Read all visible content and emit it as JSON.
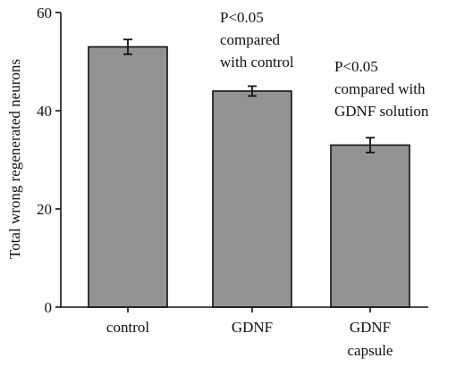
{
  "chart_data": {
    "type": "bar",
    "categories": [
      [
        "control"
      ],
      [
        "GDNF"
      ],
      [
        "GDNF",
        "capsule"
      ]
    ],
    "values": [
      53,
      44,
      33
    ],
    "error": [
      1.5,
      1.0,
      1.5
    ],
    "ylabel": "Total wrong regenerated neurons",
    "xlabel": "",
    "ylim": [
      0,
      60
    ],
    "yticks": [
      0,
      20,
      40,
      60
    ],
    "grid": false,
    "bar_color": "#939393",
    "annotations": [
      {
        "category_index": 1,
        "lines": [
          "P<0.05",
          "compared",
          "with control"
        ]
      },
      {
        "category_index": 2,
        "lines": [
          "P<0.05",
          "compared with",
          "GDNF solution"
        ]
      }
    ]
  }
}
